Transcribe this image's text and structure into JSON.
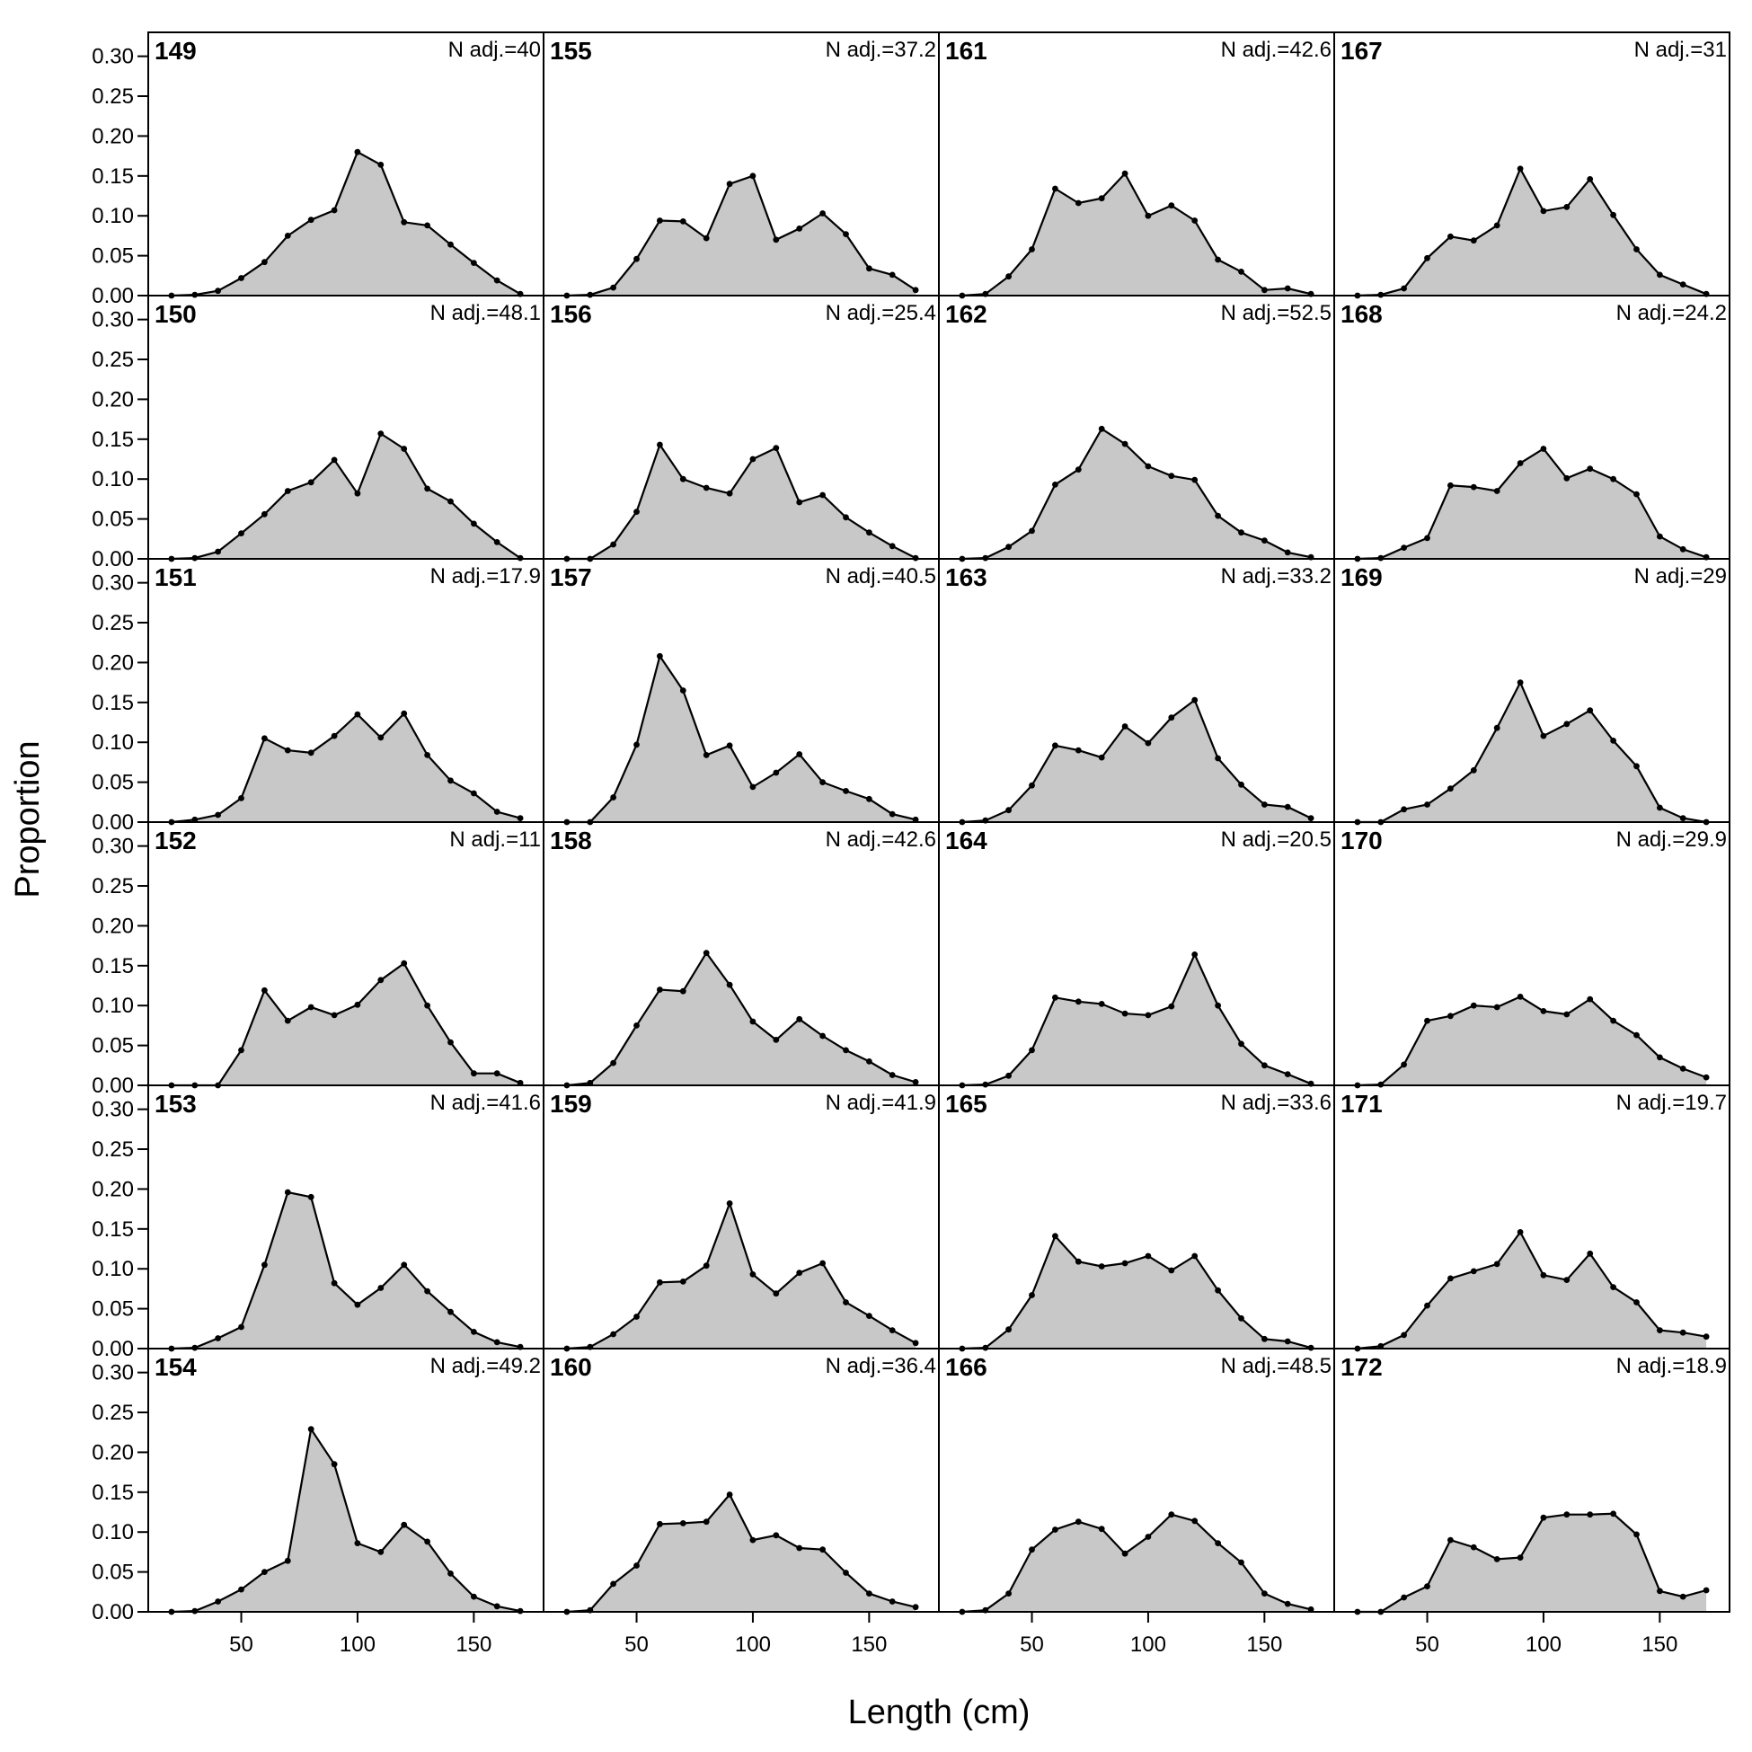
{
  "chart_data": {
    "type": "area",
    "xlabel": "Length (cm)",
    "ylabel": "Proportion",
    "xlim": [
      10,
      180
    ],
    "ylim": [
      0,
      0.33
    ],
    "x_ticks": [
      50,
      100,
      150
    ],
    "y_ticks": [
      0,
      0.05,
      0.1,
      0.15,
      0.2,
      0.25,
      0.3
    ],
    "y_tick_labels": [
      "0.00",
      "0.05",
      "0.10",
      "0.15",
      "0.20",
      "0.25",
      "0.30"
    ],
    "fill_color": "#c8c8c8",
    "line_color": "#000000",
    "x": [
      20,
      30,
      40,
      50,
      60,
      70,
      80,
      90,
      100,
      110,
      120,
      130,
      140,
      150,
      160,
      170
    ],
    "panels": [
      {
        "id": "149",
        "n_adj": "N adj.=40",
        "values": [
          0,
          0.001,
          0.006,
          0.022,
          0.042,
          0.075,
          0.095,
          0.107,
          0.18,
          0.164,
          0.092,
          0.088,
          0.064,
          0.041,
          0.019,
          0.002
        ]
      },
      {
        "id": "150",
        "n_adj": "N adj.=48.1",
        "values": [
          0,
          0.001,
          0.009,
          0.032,
          0.056,
          0.085,
          0.096,
          0.124,
          0.082,
          0.157,
          0.138,
          0.088,
          0.072,
          0.044,
          0.021,
          0.001
        ]
      },
      {
        "id": "151",
        "n_adj": "N adj.=17.9",
        "values": [
          0,
          0.003,
          0.009,
          0.03,
          0.105,
          0.09,
          0.087,
          0.108,
          0.135,
          0.106,
          0.136,
          0.084,
          0.052,
          0.036,
          0.013,
          0.005
        ]
      },
      {
        "id": "152",
        "n_adj": "N adj.=11",
        "values": [
          0,
          0,
          0,
          0.044,
          0.119,
          0.081,
          0.098,
          0.088,
          0.101,
          0.132,
          0.153,
          0.1,
          0.054,
          0.015,
          0.015,
          0.003
        ]
      },
      {
        "id": "153",
        "n_adj": "N adj.=41.6",
        "values": [
          0,
          0.001,
          0.013,
          0.027,
          0.105,
          0.196,
          0.19,
          0.082,
          0.055,
          0.076,
          0.105,
          0.072,
          0.046,
          0.021,
          0.008,
          0.002
        ]
      },
      {
        "id": "154",
        "n_adj": "N adj.=49.2",
        "values": [
          0,
          0.001,
          0.013,
          0.028,
          0.05,
          0.064,
          0.229,
          0.185,
          0.086,
          0.075,
          0.109,
          0.088,
          0.048,
          0.019,
          0.007,
          0.001
        ]
      },
      {
        "id": "155",
        "n_adj": "N adj.=37.2",
        "values": [
          0,
          0.001,
          0.01,
          0.046,
          0.094,
          0.093,
          0.072,
          0.14,
          0.15,
          0.07,
          0.084,
          0.103,
          0.077,
          0.034,
          0.026,
          0.007
        ]
      },
      {
        "id": "156",
        "n_adj": "N adj.=25.4",
        "values": [
          0,
          0,
          0.018,
          0.059,
          0.143,
          0.1,
          0.089,
          0.082,
          0.125,
          0.139,
          0.071,
          0.08,
          0.052,
          0.033,
          0.016,
          0.001
        ]
      },
      {
        "id": "157",
        "n_adj": "N adj.=40.5",
        "values": [
          0,
          0,
          0.031,
          0.097,
          0.208,
          0.165,
          0.084,
          0.096,
          0.044,
          0.062,
          0.085,
          0.05,
          0.039,
          0.029,
          0.01,
          0.003
        ]
      },
      {
        "id": "158",
        "n_adj": "N adj.=42.6",
        "values": [
          0,
          0.003,
          0.028,
          0.075,
          0.12,
          0.118,
          0.166,
          0.126,
          0.08,
          0.057,
          0.083,
          0.062,
          0.044,
          0.03,
          0.013,
          0.004
        ]
      },
      {
        "id": "159",
        "n_adj": "N adj.=41.9",
        "values": [
          0,
          0.002,
          0.018,
          0.04,
          0.083,
          0.084,
          0.104,
          0.182,
          0.093,
          0.069,
          0.095,
          0.107,
          0.058,
          0.041,
          0.023,
          0.007
        ]
      },
      {
        "id": "160",
        "n_adj": "N adj.=36.4",
        "values": [
          0,
          0.002,
          0.035,
          0.058,
          0.11,
          0.111,
          0.113,
          0.147,
          0.09,
          0.096,
          0.08,
          0.078,
          0.049,
          0.023,
          0.013,
          0.006
        ]
      },
      {
        "id": "161",
        "n_adj": "N adj.=42.6",
        "values": [
          0,
          0.002,
          0.024,
          0.058,
          0.134,
          0.116,
          0.122,
          0.153,
          0.1,
          0.113,
          0.094,
          0.045,
          0.03,
          0.007,
          0.009,
          0.002
        ]
      },
      {
        "id": "162",
        "n_adj": "N adj.=52.5",
        "values": [
          0,
          0.001,
          0.015,
          0.035,
          0.093,
          0.112,
          0.163,
          0.144,
          0.116,
          0.104,
          0.099,
          0.054,
          0.033,
          0.023,
          0.008,
          0.002
        ]
      },
      {
        "id": "163",
        "n_adj": "N adj.=33.2",
        "values": [
          0,
          0.002,
          0.015,
          0.046,
          0.096,
          0.09,
          0.081,
          0.12,
          0.099,
          0.131,
          0.153,
          0.08,
          0.047,
          0.022,
          0.019,
          0.005
        ]
      },
      {
        "id": "164",
        "n_adj": "N adj.=20.5",
        "values": [
          0,
          0.001,
          0.012,
          0.044,
          0.11,
          0.105,
          0.102,
          0.09,
          0.088,
          0.099,
          0.164,
          0.1,
          0.052,
          0.025,
          0.014,
          0.002
        ]
      },
      {
        "id": "165",
        "n_adj": "N adj.=33.6",
        "values": [
          0,
          0.001,
          0.024,
          0.067,
          0.141,
          0.109,
          0.103,
          0.107,
          0.116,
          0.098,
          0.116,
          0.073,
          0.038,
          0.012,
          0.009,
          0.001
        ]
      },
      {
        "id": "166",
        "n_adj": "N adj.=48.5",
        "values": [
          0,
          0.002,
          0.023,
          0.078,
          0.103,
          0.113,
          0.104,
          0.073,
          0.094,
          0.122,
          0.114,
          0.086,
          0.062,
          0.023,
          0.01,
          0.003
        ]
      },
      {
        "id": "167",
        "n_adj": "N adj.=31",
        "values": [
          0,
          0.001,
          0.009,
          0.047,
          0.074,
          0.069,
          0.088,
          0.159,
          0.106,
          0.111,
          0.146,
          0.101,
          0.058,
          0.026,
          0.014,
          0.002
        ]
      },
      {
        "id": "168",
        "n_adj": "N adj.=24.2",
        "values": [
          0,
          0.001,
          0.014,
          0.026,
          0.092,
          0.09,
          0.085,
          0.12,
          0.138,
          0.101,
          0.113,
          0.1,
          0.081,
          0.028,
          0.012,
          0.002
        ]
      },
      {
        "id": "169",
        "n_adj": "N adj.=29",
        "values": [
          0,
          0,
          0.016,
          0.022,
          0.042,
          0.065,
          0.118,
          0.175,
          0.108,
          0.123,
          0.14,
          0.102,
          0.07,
          0.018,
          0.005,
          0
        ]
      },
      {
        "id": "170",
        "n_adj": "N adj.=29.9",
        "values": [
          0,
          0.001,
          0.026,
          0.081,
          0.087,
          0.1,
          0.098,
          0.111,
          0.093,
          0.089,
          0.108,
          0.081,
          0.063,
          0.035,
          0.021,
          0.01
        ]
      },
      {
        "id": "171",
        "n_adj": "N adj.=19.7",
        "values": [
          0,
          0.003,
          0.017,
          0.054,
          0.088,
          0.097,
          0.106,
          0.146,
          0.092,
          0.086,
          0.119,
          0.077,
          0.058,
          0.023,
          0.02,
          0.015
        ]
      },
      {
        "id": "172",
        "n_adj": "N adj.=18.9",
        "values": [
          0,
          0,
          0.018,
          0.032,
          0.09,
          0.081,
          0.066,
          0.068,
          0.118,
          0.122,
          0.122,
          0.123,
          0.097,
          0.026,
          0.019,
          0.027
        ]
      }
    ]
  }
}
